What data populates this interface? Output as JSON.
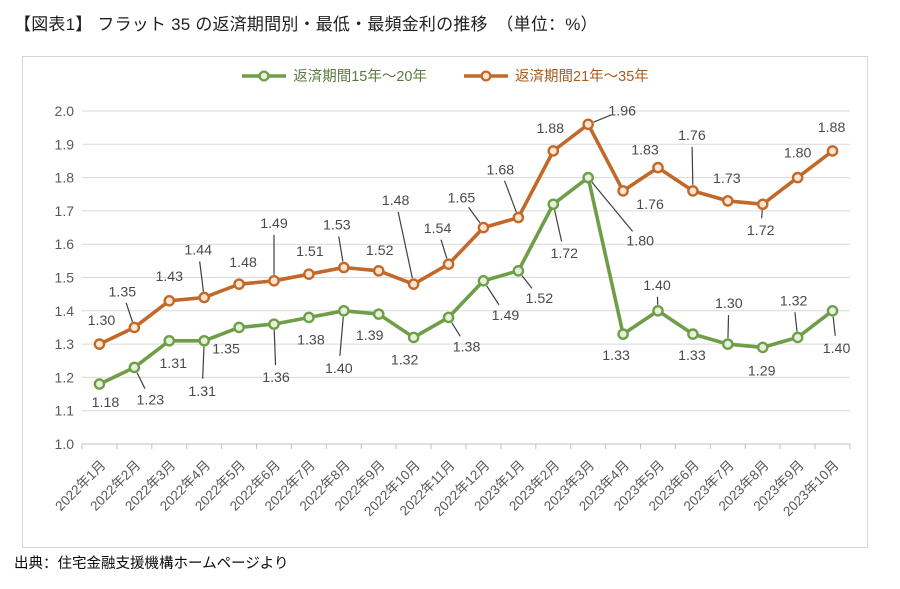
{
  "page": {
    "title": "【図表1】 フラット 35 の返済期間別・最低・最頻金利の推移　（単位：%）",
    "source_note": "出典：住宅金融支援機構ホームページより"
  },
  "chart_data": {
    "type": "line",
    "unit": "%",
    "categories": [
      "2022年1月",
      "2022年2月",
      "2022年3月",
      "2022年4月",
      "2022年5月",
      "2022年6月",
      "2022年7月",
      "2022年8月",
      "2022年9月",
      "2022年10月",
      "2022年11月",
      "2022年12月",
      "2023年1月",
      "2023年2月",
      "2023年3月",
      "2023年4月",
      "2023年5月",
      "2023年6月",
      "2023年7月",
      "2023年8月",
      "2023年9月",
      "2023年10月"
    ],
    "series": [
      {
        "name": "返済期間15年～20年",
        "color": "#6f9e49",
        "marker_fill": "#e7f0dd",
        "label_color": "#5a7a3e",
        "values": [
          1.18,
          1.23,
          1.31,
          1.31,
          1.35,
          1.36,
          1.38,
          1.4,
          1.39,
          1.32,
          1.38,
          1.49,
          1.52,
          1.72,
          1.8,
          1.33,
          1.4,
          1.33,
          1.3,
          1.29,
          1.32,
          1.4
        ]
      },
      {
        "name": "返済期間21年～35年",
        "color": "#c2692a",
        "marker_fill": "#fbe7d1",
        "label_color": "#a85c1e",
        "values": [
          1.3,
          1.35,
          1.43,
          1.44,
          1.48,
          1.49,
          1.51,
          1.53,
          1.52,
          1.48,
          1.54,
          1.65,
          1.68,
          1.88,
          1.96,
          1.76,
          1.83,
          1.76,
          1.73,
          1.72,
          1.8,
          1.88
        ]
      }
    ],
    "ylim": [
      1.0,
      2.0
    ],
    "ytick_step": 0.1,
    "ytick_labels": [
      "1.0",
      "1.1",
      "1.2",
      "1.3",
      "1.4",
      "1.5",
      "1.6",
      "1.7",
      "1.8",
      "1.9",
      "2.0"
    ],
    "grid": true,
    "legend_position": "top",
    "data_labels": true,
    "colors": {
      "grid": "#d9d9d9",
      "axis": "#bfbfbf",
      "tick_label": "#595959",
      "data_label": "#4a4a4a",
      "leader_line": "#3f3f3f",
      "frame_border": "#d6d6d6"
    }
  }
}
